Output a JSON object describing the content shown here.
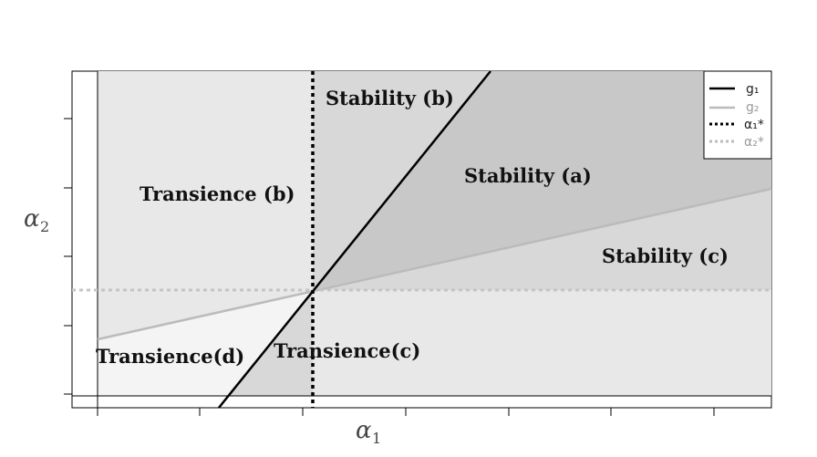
{
  "axes": {
    "x_label": "α",
    "x_label_sub": "1",
    "y_label": "α",
    "y_label_sub": "2"
  },
  "regions": {
    "stability_a": "Stability (a)",
    "stability_b": "Stability (b)",
    "stability_c": "Stability (c)",
    "transience_b": "Transience (b)",
    "transience_c": "Transience(c)",
    "transience_d": "Transience(d)"
  },
  "legend": {
    "items": [
      {
        "label": "g₁",
        "style": "solid",
        "color": "#000000"
      },
      {
        "label": "g₂",
        "style": "solid",
        "color": "#bbbbbb"
      },
      {
        "label": "α₁*",
        "style": "dotted",
        "color": "#000000"
      },
      {
        "label": "α₂*",
        "style": "dotted",
        "color": "#bbbbbb"
      }
    ]
  },
  "colors": {
    "region_light": "#e8e8e8",
    "region_mid": "#d8d8d8",
    "region_dark": "#c8c8c8",
    "region_lightest": "#f4f4f4",
    "g1": "#000000",
    "g2": "#bbbbbb"
  }
}
